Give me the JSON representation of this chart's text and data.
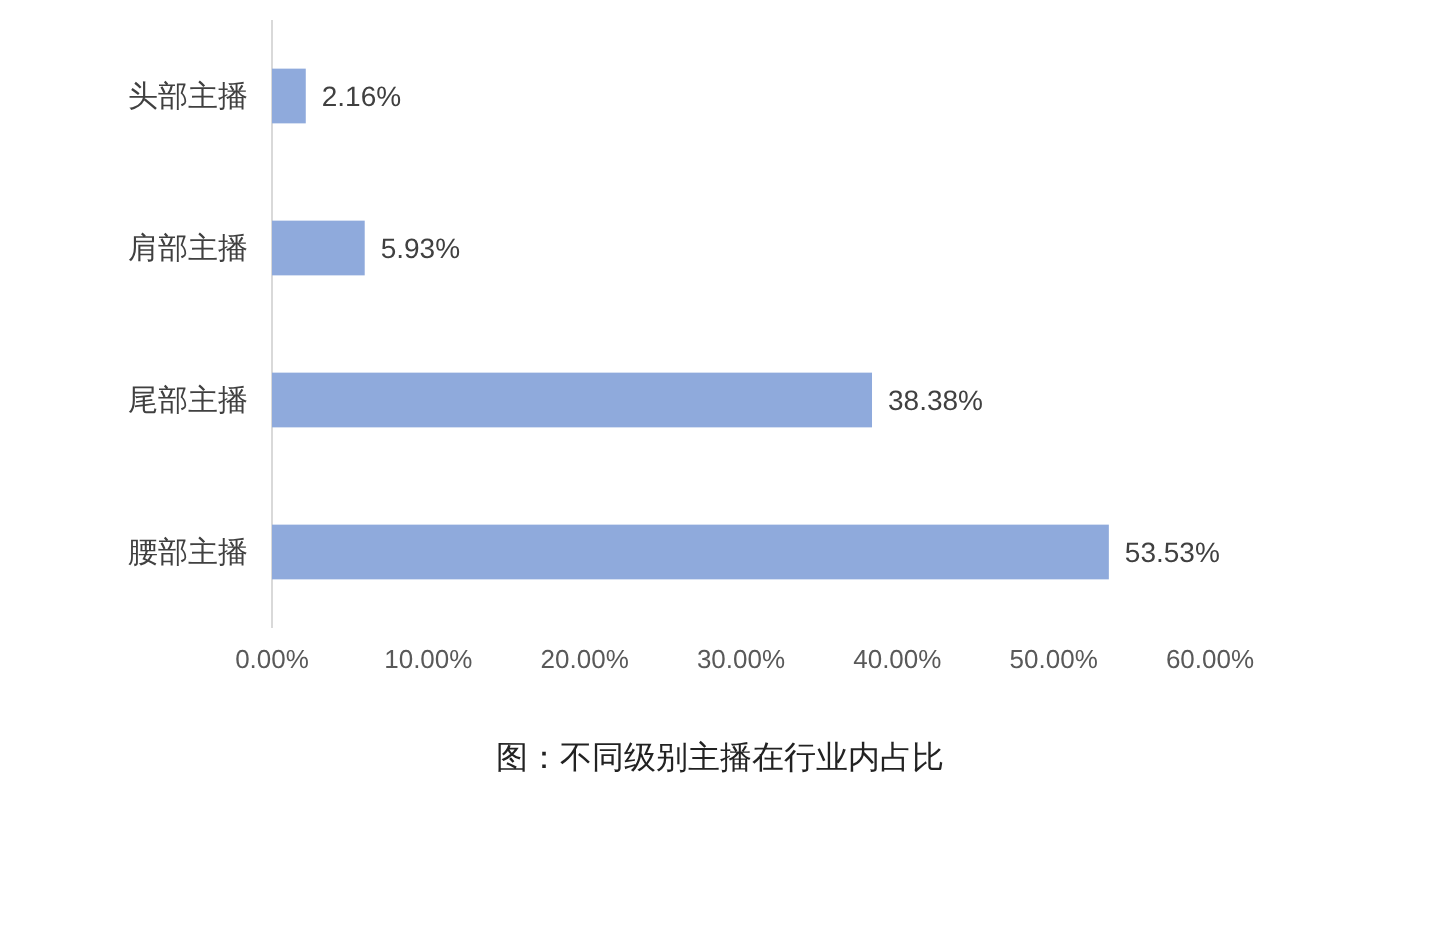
{
  "chart_data": {
    "type": "bar",
    "orientation": "horizontal",
    "title": "图：不同级别主播在行业内占比",
    "categories": [
      "头部主播",
      "肩部主播",
      "尾部主播",
      "腰部主播"
    ],
    "values": [
      2.16,
      5.93,
      38.38,
      53.53
    ],
    "value_labels": [
      "2.16%",
      "5.93%",
      "38.38%",
      "53.53%"
    ],
    "color": "#8faadc",
    "xlim": [
      0,
      60
    ],
    "xticks": [
      {
        "value": 0,
        "label": "0.00%"
      },
      {
        "value": 10,
        "label": "10.00%"
      },
      {
        "value": 20,
        "label": "20.00%"
      },
      {
        "value": 30,
        "label": "30.00%"
      },
      {
        "value": 40,
        "label": "40.00%"
      },
      {
        "value": 50,
        "label": "50.00%"
      },
      {
        "value": 60,
        "label": "60.00%"
      }
    ]
  }
}
